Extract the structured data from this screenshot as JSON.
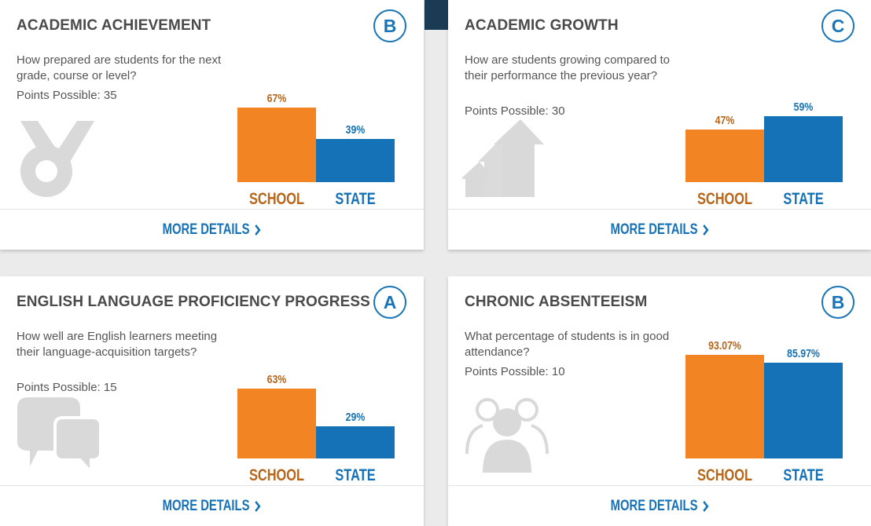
{
  "cards": [
    {
      "title": "ACADEMIC ACHIEVEMENT",
      "grade": "B",
      "question": "How prepared are students for the next grade, course or level?",
      "points": "Points Possible: 35",
      "icon": "medal-icon",
      "chart_data": {
        "type": "bar",
        "categories": [
          "SCHOOL",
          "STATE"
        ],
        "values": [
          67,
          39
        ],
        "value_labels": [
          "67%",
          "39%"
        ],
        "ylim": [
          0,
          100
        ]
      },
      "more_details": "MORE DETAILS"
    },
    {
      "title": "ACADEMIC GROWTH",
      "grade": "C",
      "question": "How are students growing compared to their performance the previous year?",
      "points": "Points Possible: 30",
      "icon": "growth-arrows-icon",
      "chart_data": {
        "type": "bar",
        "categories": [
          "SCHOOL",
          "STATE"
        ],
        "values": [
          47,
          59
        ],
        "value_labels": [
          "47%",
          "59%"
        ],
        "ylim": [
          0,
          100
        ]
      },
      "more_details": "MORE DETAILS"
    },
    {
      "title": "ENGLISH LANGUAGE PROFICIENCY PROGRESS",
      "grade": "A",
      "question": "How well are English learners meeting their language-acquisition targets?",
      "points": "Points Possible: 15",
      "icon": "speech-bubbles-icon",
      "chart_data": {
        "type": "bar",
        "categories": [
          "SCHOOL",
          "STATE"
        ],
        "values": [
          63,
          29
        ],
        "value_labels": [
          "63%",
          "29%"
        ],
        "ylim": [
          0,
          100
        ]
      },
      "more_details": "MORE DETAILS"
    },
    {
      "title": "CHRONIC ABSENTEEISM",
      "grade": "B",
      "question": "What percentage of students is in good attendance?",
      "points": "Points Possible: 10",
      "icon": "people-group-icon",
      "chart_data": {
        "type": "bar",
        "categories": [
          "SCHOOL",
          "STATE"
        ],
        "values": [
          93.07,
          85.97
        ],
        "value_labels": [
          "93.07%",
          "85.97%"
        ],
        "ylim": [
          0,
          100
        ]
      },
      "more_details": "MORE DETAILS"
    }
  ],
  "colors": {
    "school": "#f28423",
    "state": "#1572b6",
    "icon_gray": "#d9d9d9"
  }
}
